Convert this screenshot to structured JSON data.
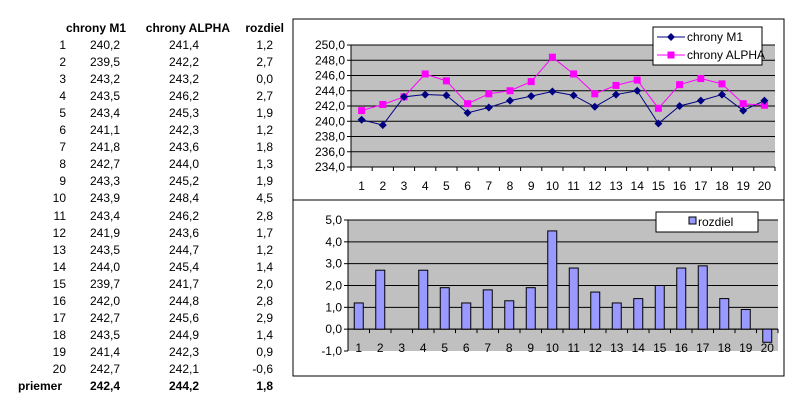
{
  "table": {
    "headers": [
      "chrony M1",
      "chrony ALPHA",
      "rozdiel"
    ],
    "rows": [
      [
        "1",
        "240,2",
        "241,4",
        "1,2"
      ],
      [
        "2",
        "239,5",
        "242,2",
        "2,7"
      ],
      [
        "3",
        "243,2",
        "243,2",
        "0,0"
      ],
      [
        "4",
        "243,5",
        "246,2",
        "2,7"
      ],
      [
        "5",
        "243,4",
        "245,3",
        "1,9"
      ],
      [
        "6",
        "241,1",
        "242,3",
        "1,2"
      ],
      [
        "7",
        "241,8",
        "243,6",
        "1,8"
      ],
      [
        "8",
        "242,7",
        "244,0",
        "1,3"
      ],
      [
        "9",
        "243,3",
        "245,2",
        "1,9"
      ],
      [
        "10",
        "243,9",
        "248,4",
        "4,5"
      ],
      [
        "11",
        "243,4",
        "246,2",
        "2,8"
      ],
      [
        "12",
        "241,9",
        "243,6",
        "1,7"
      ],
      [
        "13",
        "243,5",
        "244,7",
        "1,2"
      ],
      [
        "14",
        "244,0",
        "245,4",
        "1,4"
      ],
      [
        "15",
        "239,7",
        "241,7",
        "2,0"
      ],
      [
        "16",
        "242,0",
        "244,8",
        "2,8"
      ],
      [
        "17",
        "242,7",
        "245,6",
        "2,9"
      ],
      [
        "18",
        "243,5",
        "244,9",
        "1,4"
      ],
      [
        "19",
        "241,4",
        "242,3",
        "0,9"
      ],
      [
        "20",
        "242,7",
        "242,1",
        "-0,6"
      ]
    ],
    "footer": [
      "priemer",
      "242,4",
      "244,2",
      "1,8"
    ]
  },
  "chart_data": [
    {
      "type": "line",
      "categories": [
        "1",
        "2",
        "3",
        "4",
        "5",
        "6",
        "7",
        "8",
        "9",
        "10",
        "11",
        "12",
        "13",
        "14",
        "15",
        "16",
        "17",
        "18",
        "19",
        "20"
      ],
      "series": [
        {
          "name": "chrony M1",
          "color": "#000080",
          "marker": "diamond",
          "values": [
            240.2,
            239.5,
            243.2,
            243.5,
            243.4,
            241.1,
            241.8,
            242.7,
            243.3,
            243.9,
            243.4,
            241.9,
            243.5,
            244.0,
            239.7,
            242.0,
            242.7,
            243.5,
            241.4,
            242.7
          ]
        },
        {
          "name": "chrony ALPHA",
          "color": "#FF00FF",
          "marker": "square",
          "values": [
            241.4,
            242.2,
            243.2,
            246.2,
            245.3,
            242.3,
            243.6,
            244.0,
            245.2,
            248.4,
            246.2,
            243.6,
            244.7,
            245.4,
            241.7,
            244.8,
            245.6,
            244.9,
            242.3,
            242.1
          ]
        }
      ],
      "ylim": [
        234,
        250
      ],
      "yticks": [
        "234,0",
        "236,0",
        "238,0",
        "240,0",
        "242,0",
        "244,0",
        "246,0",
        "248,0",
        "250,0"
      ],
      "grid": true,
      "legend": "top-right",
      "plot_bg": "#C0C0C0"
    },
    {
      "type": "bar",
      "categories": [
        "1",
        "2",
        "3",
        "4",
        "5",
        "6",
        "7",
        "8",
        "9",
        "10",
        "11",
        "12",
        "13",
        "14",
        "15",
        "16",
        "17",
        "18",
        "19",
        "20"
      ],
      "series": [
        {
          "name": "rozdiel",
          "color": "#9999FF",
          "values": [
            1.2,
            2.7,
            0.0,
            2.7,
            1.9,
            1.2,
            1.8,
            1.3,
            1.9,
            4.5,
            2.8,
            1.7,
            1.2,
            1.4,
            2.0,
            2.8,
            2.9,
            1.4,
            0.9,
            -0.6
          ]
        }
      ],
      "ylim": [
        -1,
        5
      ],
      "yticks": [
        "-1,0",
        "0,0",
        "1,0",
        "2,0",
        "3,0",
        "4,0",
        "5,0"
      ],
      "grid": true,
      "legend": "top-right",
      "plot_bg": "#C0C0C0"
    }
  ]
}
